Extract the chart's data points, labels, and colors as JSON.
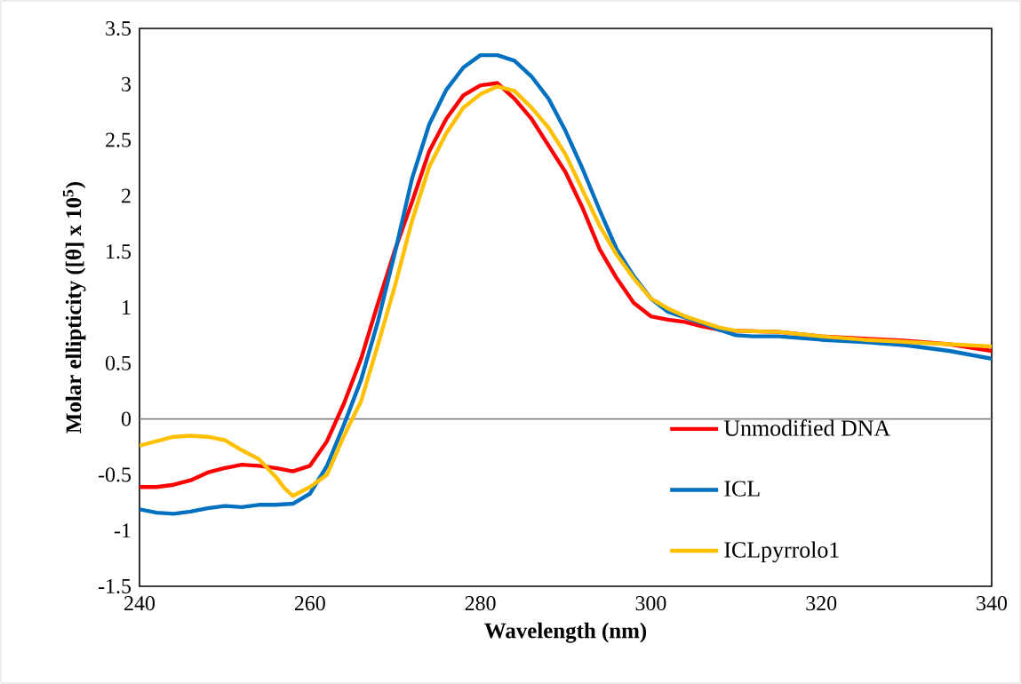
{
  "chart_data": {
    "type": "line",
    "xlabel": "Wavelength (nm)",
    "ylabel": "Molar ellipticity ([θ] x 10$^{5}$)",
    "xlim": [
      240,
      340
    ],
    "xticks": [
      240,
      260,
      280,
      300,
      320,
      340
    ],
    "ylim": [
      -1.5,
      3.5
    ],
    "yticks": [
      -1.5,
      -1,
      -0.5,
      0,
      0.5,
      1,
      1.5,
      2,
      2.5,
      3,
      3.5
    ],
    "grid": false,
    "legend": "bottom right",
    "ref_lines": [
      {
        "axis": "y",
        "value": 0,
        "color": "#868686"
      }
    ],
    "series": [
      {
        "name": "Unmodified DNA",
        "color": "#ff0000",
        "x": [
          240,
          242,
          244,
          246,
          248,
          250,
          252,
          254,
          256,
          258,
          260,
          262,
          264,
          266,
          268,
          270,
          272,
          274,
          276,
          278,
          280,
          282,
          284,
          286,
          288,
          290,
          292,
          294,
          296,
          298,
          300,
          302,
          304,
          306,
          308,
          310,
          315,
          320,
          325,
          330,
          335,
          340
        ],
        "values": [
          -0.61,
          -0.61,
          -0.59,
          -0.55,
          -0.48,
          -0.44,
          -0.41,
          -0.42,
          -0.44,
          -0.47,
          -0.42,
          -0.2,
          0.14,
          0.54,
          1.04,
          1.52,
          1.95,
          2.4,
          2.69,
          2.9,
          2.99,
          3.01,
          2.87,
          2.69,
          2.45,
          2.21,
          1.89,
          1.52,
          1.26,
          1.04,
          0.92,
          0.89,
          0.87,
          0.83,
          0.8,
          0.79,
          0.78,
          0.74,
          0.72,
          0.7,
          0.67,
          0.61
        ]
      },
      {
        "name": "ICL",
        "color": "#0070c0",
        "x": [
          240,
          242,
          244,
          246,
          248,
          250,
          252,
          254,
          256,
          258,
          260,
          262,
          264,
          266,
          268,
          270,
          272,
          274,
          276,
          278,
          280,
          282,
          284,
          286,
          288,
          290,
          292,
          294,
          296,
          298,
          300,
          302,
          304,
          306,
          308,
          310,
          312,
          315,
          320,
          325,
          330,
          335,
          340
        ],
        "values": [
          -0.81,
          -0.84,
          -0.85,
          -0.83,
          -0.8,
          -0.78,
          -0.79,
          -0.77,
          -0.77,
          -0.76,
          -0.67,
          -0.42,
          -0.05,
          0.35,
          0.88,
          1.5,
          2.16,
          2.64,
          2.95,
          3.15,
          3.26,
          3.26,
          3.21,
          3.07,
          2.87,
          2.58,
          2.24,
          1.87,
          1.52,
          1.28,
          1.08,
          0.96,
          0.91,
          0.86,
          0.8,
          0.75,
          0.74,
          0.74,
          0.71,
          0.69,
          0.66,
          0.61,
          0.54
        ]
      },
      {
        "name": "ICLpyrrolo1",
        "color": "#ffc000",
        "x": [
          240,
          242,
          244,
          246,
          248,
          250,
          252,
          254,
          256,
          257,
          258,
          260,
          262,
          264,
          266,
          268,
          270,
          272,
          274,
          276,
          278,
          280,
          282,
          284,
          286,
          288,
          290,
          292,
          294,
          296,
          298,
          300,
          302,
          304,
          306,
          308,
          310,
          315,
          320,
          325,
          330,
          335,
          340
        ],
        "values": [
          -0.24,
          -0.2,
          -0.16,
          -0.15,
          -0.16,
          -0.19,
          -0.28,
          -0.36,
          -0.52,
          -0.62,
          -0.69,
          -0.61,
          -0.5,
          -0.15,
          0.16,
          0.67,
          1.2,
          1.78,
          2.26,
          2.56,
          2.79,
          2.91,
          2.98,
          2.94,
          2.79,
          2.61,
          2.37,
          2.05,
          1.73,
          1.47,
          1.26,
          1.08,
          0.99,
          0.92,
          0.87,
          0.82,
          0.79,
          0.78,
          0.74,
          0.71,
          0.69,
          0.67,
          0.65
        ]
      }
    ]
  }
}
